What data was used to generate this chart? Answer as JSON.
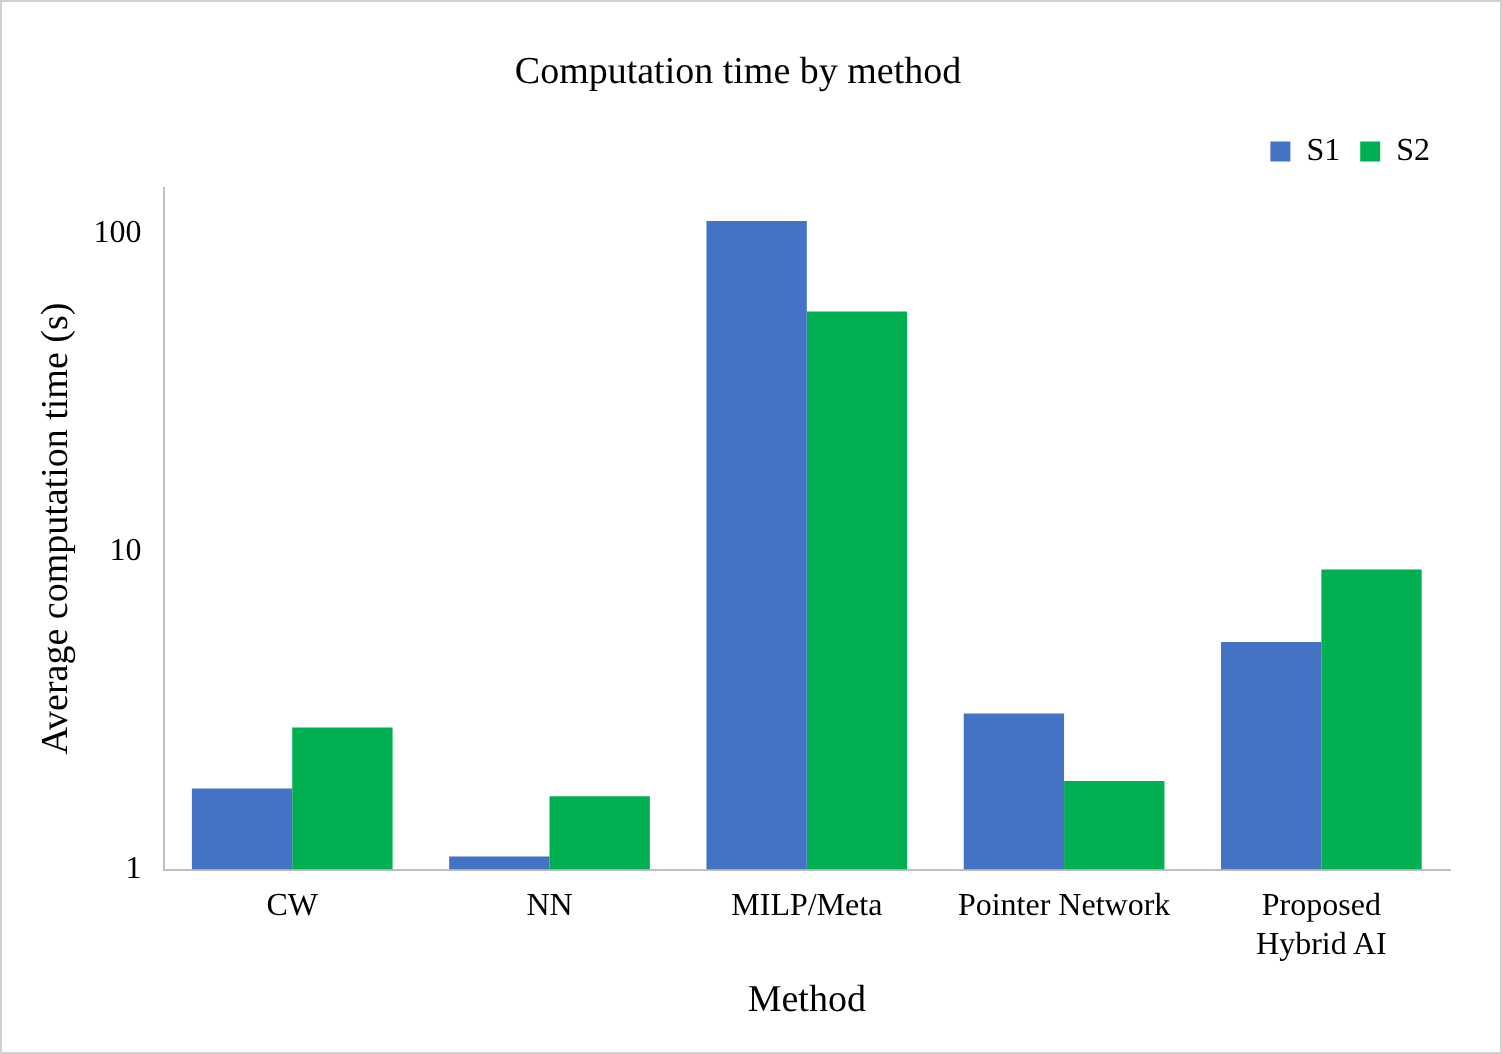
{
  "chart_data": {
    "type": "bar",
    "title": "Computation time by method",
    "xlabel": "Method",
    "ylabel": "Average computation time (s)",
    "categories": [
      "CW",
      "NN",
      "MILP/Meta",
      "Pointer Network",
      "Proposed Hybrid AI"
    ],
    "series": [
      {
        "name": "S1",
        "color": "#4472c4",
        "values": [
          1.8,
          1.1,
          110,
          3.1,
          5.2
        ]
      },
      {
        "name": "S2",
        "color": "#00b050",
        "values": [
          2.8,
          1.7,
          57,
          1.9,
          8.8
        ]
      }
    ],
    "log": "y",
    "ylim": [
      1,
      140
    ],
    "yticks": [
      1,
      10,
      100
    ],
    "grid": false,
    "legend": "top right"
  }
}
